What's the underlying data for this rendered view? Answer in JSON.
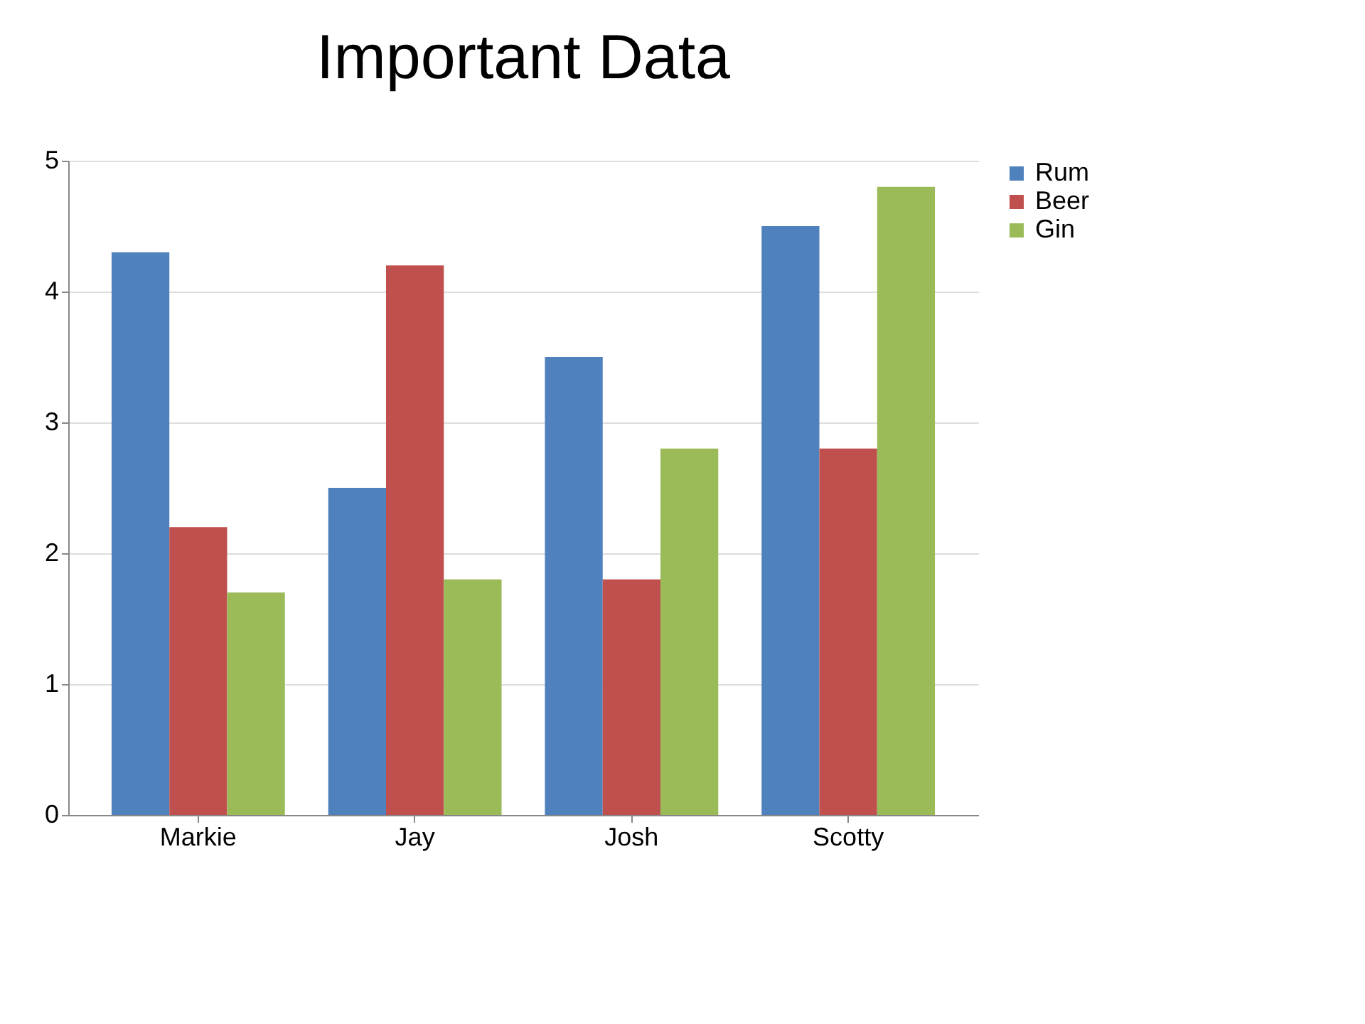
{
  "chart_data": {
    "type": "bar",
    "title": "Important Data",
    "categories": [
      "Markie",
      "Jay",
      "Josh",
      "Scotty"
    ],
    "series": [
      {
        "name": "Rum",
        "color": "#4f81bd",
        "values": [
          4.3,
          2.5,
          3.5,
          4.5
        ]
      },
      {
        "name": "Beer",
        "color": "#c0504d",
        "values": [
          2.2,
          4.2,
          1.8,
          2.8
        ]
      },
      {
        "name": "Gin",
        "color": "#9bbb59",
        "values": [
          1.7,
          1.8,
          2.8,
          4.8
        ]
      }
    ],
    "ylim": [
      0,
      5
    ],
    "yticks": [
      0,
      1,
      2,
      3,
      4,
      5
    ],
    "grid": "y",
    "legend": "right"
  }
}
